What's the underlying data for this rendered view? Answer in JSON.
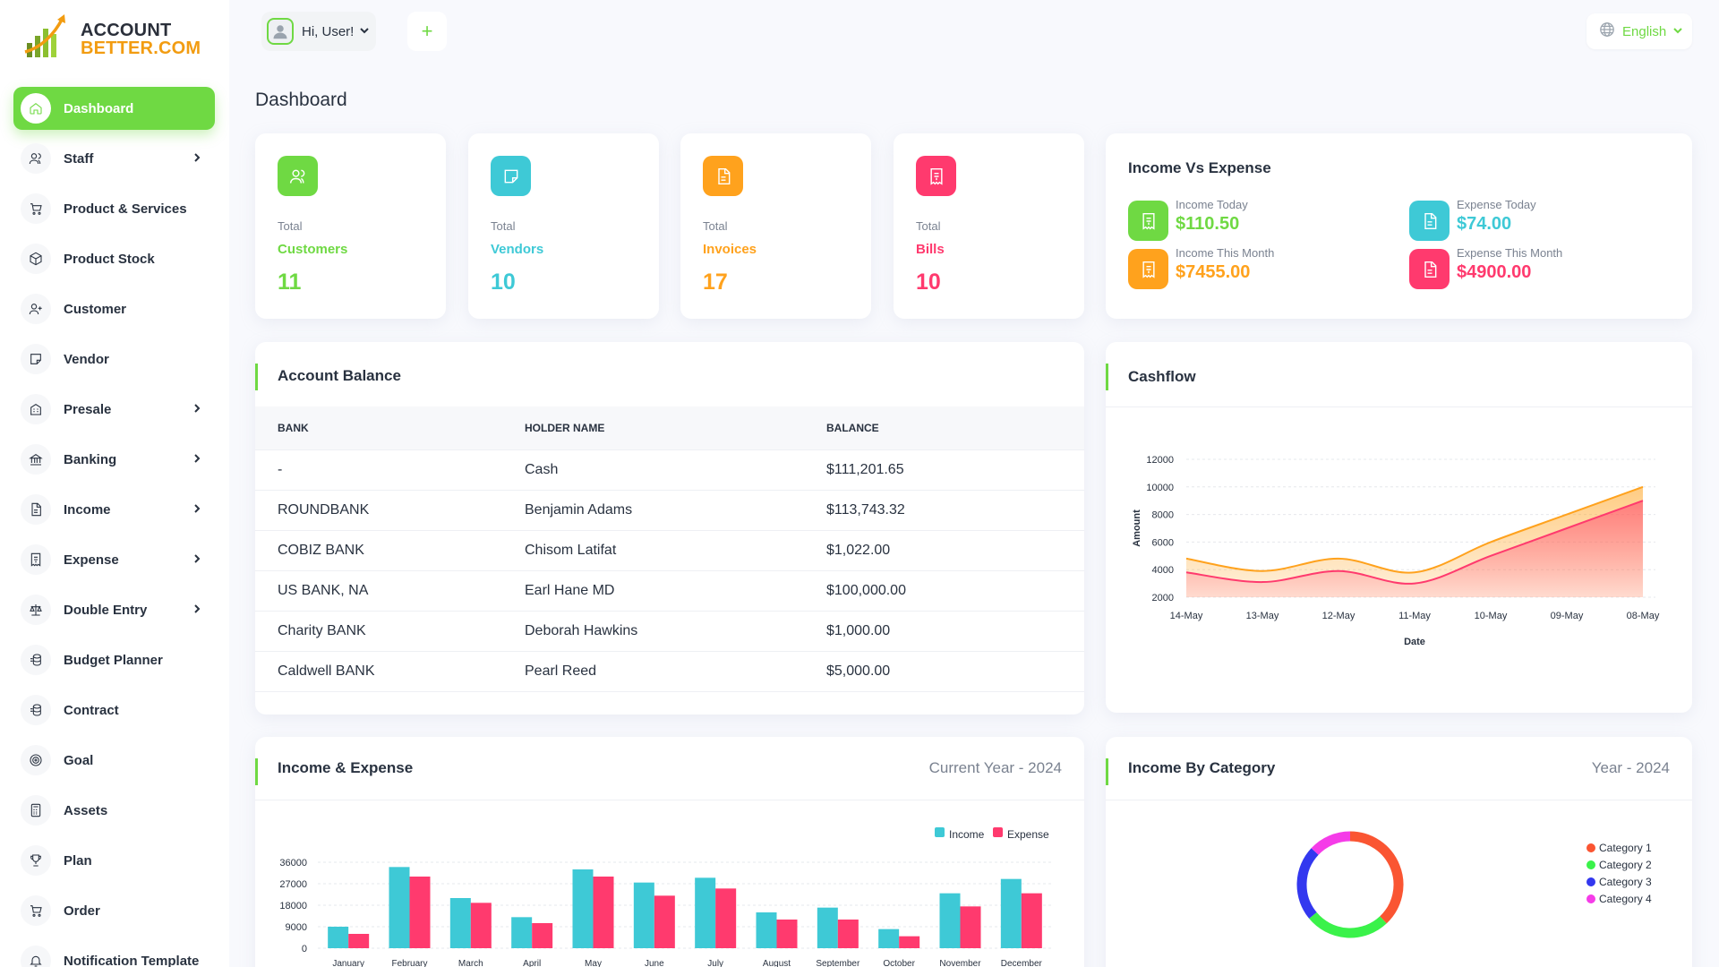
{
  "brand": {
    "line1": "ACCOUNT",
    "line2": "BETTER.COM"
  },
  "colors": {
    "accent": "#6fd943",
    "cyan": "#3ec9d6",
    "orange": "#ffa21d",
    "pink": "#ff3a6e",
    "dark": "#293240"
  },
  "sidebar": {
    "items": [
      {
        "label": "Dashboard",
        "icon": "home-icon",
        "active": true,
        "has_children": false
      },
      {
        "label": "Staff",
        "icon": "users-icon",
        "has_children": true
      },
      {
        "label": "Product & Services",
        "icon": "cart-icon",
        "has_children": false
      },
      {
        "label": "Product Stock",
        "icon": "box-icon",
        "has_children": false
      },
      {
        "label": "Customer",
        "icon": "user-plus-icon",
        "has_children": false
      },
      {
        "label": "Vendor",
        "icon": "note-icon",
        "has_children": false
      },
      {
        "label": "Presale",
        "icon": "building-icon",
        "has_children": true
      },
      {
        "label": "Banking",
        "icon": "bank-icon",
        "has_children": true
      },
      {
        "label": "Income",
        "icon": "invoice-icon",
        "has_children": true
      },
      {
        "label": "Expense",
        "icon": "receipt-icon",
        "has_children": true
      },
      {
        "label": "Double Entry",
        "icon": "scale-icon",
        "has_children": true
      },
      {
        "label": "Budget Planner",
        "icon": "coins-icon",
        "has_children": false
      },
      {
        "label": "Contract",
        "icon": "coins-icon",
        "has_children": false
      },
      {
        "label": "Goal",
        "icon": "target-icon",
        "has_children": false
      },
      {
        "label": "Assets",
        "icon": "calculator-icon",
        "has_children": false
      },
      {
        "label": "Plan",
        "icon": "trophy-icon",
        "has_children": false
      },
      {
        "label": "Order",
        "icon": "cart-icon",
        "has_children": false
      },
      {
        "label": "Notification Template",
        "icon": "bell-icon",
        "has_children": false
      }
    ]
  },
  "header": {
    "greeting": "Hi, User!",
    "add_label": "+",
    "language": "English"
  },
  "page_title": "Dashboard",
  "stats": [
    {
      "small": "Total",
      "label": "Customers",
      "value": "11",
      "color": "#6fd943",
      "icon": "users-icon"
    },
    {
      "small": "Total",
      "label": "Vendors",
      "value": "10",
      "color": "#3ec9d6",
      "icon": "note-icon"
    },
    {
      "small": "Total",
      "label": "Invoices",
      "value": "17",
      "color": "#ffa21d",
      "icon": "invoice-icon"
    },
    {
      "small": "Total",
      "label": "Bills",
      "value": "10",
      "color": "#ff3a6e",
      "icon": "receipt-icon"
    }
  ],
  "income_vs_expense": {
    "title": "Income Vs Expense",
    "items": [
      {
        "label": "Income Today",
        "value": "$110.50",
        "color": "#6fd943",
        "icon": "receipt-icon"
      },
      {
        "label": "Expense Today",
        "value": "$74.00",
        "color": "#3ec9d6",
        "icon": "invoice-icon"
      },
      {
        "label": "Income This Month",
        "value": "$7455.00",
        "color": "#ffa21d",
        "icon": "receipt-icon"
      },
      {
        "label": "Expense This Month",
        "value": "$4900.00",
        "color": "#ff3a6e",
        "icon": "invoice-icon"
      }
    ]
  },
  "account_balance": {
    "title": "Account Balance",
    "headers": [
      "BANK",
      "HOLDER NAME",
      "BALANCE"
    ],
    "rows": [
      [
        "-",
        "Cash",
        "$111,201.65"
      ],
      [
        "ROUNDBANK",
        "Benjamin Adams",
        "$113,743.32"
      ],
      [
        "COBIZ BANK",
        "Chisom Latifat",
        "$1,022.00"
      ],
      [
        "US BANK, NA",
        "Earl Hane MD",
        "$100,000.00"
      ],
      [
        "Charity BANK",
        "Deborah Hawkins",
        "$1,000.00"
      ],
      [
        "Caldwell BANK",
        "Pearl Reed",
        "$5,000.00"
      ]
    ]
  },
  "cashflow": {
    "title": "Cashflow",
    "chart_data": {
      "type": "area",
      "x": [
        "14-May",
        "13-May",
        "12-May",
        "11-May",
        "10-May",
        "09-May",
        "08-May"
      ],
      "xlabel": "Date",
      "ylabel": "Amount",
      "ylim": [
        2000,
        12000
      ],
      "yticks": [
        2000,
        4000,
        6000,
        8000,
        10000,
        12000
      ],
      "series": [
        {
          "color": "#ffa21d",
          "values": [
            4800,
            3900,
            4800,
            3800,
            6000,
            8000,
            10000
          ]
        },
        {
          "color": "#ff3a6e",
          "values": [
            3800,
            3100,
            3900,
            3000,
            5000,
            7000,
            9000
          ]
        }
      ],
      "grid": true
    }
  },
  "income_expense": {
    "title": "Income & Expense",
    "subtitle": "Current Year - 2024",
    "chart_data": {
      "type": "bar",
      "categories": [
        "January",
        "February",
        "March",
        "April",
        "May",
        "June",
        "July",
        "August",
        "September",
        "October",
        "November",
        "December"
      ],
      "ylim": [
        0,
        36000
      ],
      "yticks": [
        0,
        9000,
        18000,
        27000,
        36000
      ],
      "series": [
        {
          "name": "Income",
          "color": "#3ec9d6",
          "values": [
            9000,
            34000,
            21000,
            13000,
            33000,
            27500,
            29500,
            15000,
            17000,
            8000,
            23000,
            29000
          ]
        },
        {
          "name": "Expense",
          "color": "#ff3a6e",
          "values": [
            6000,
            30000,
            19000,
            10500,
            30000,
            22000,
            25000,
            12000,
            12000,
            5000,
            17500,
            23000
          ]
        }
      ],
      "legend": "top-right",
      "grid": true
    }
  },
  "income_by_category": {
    "title": "Income By Category",
    "subtitle": "Year - 2024",
    "chart_data": {
      "type": "pie",
      "labels": [
        "Category 1",
        "Category 2",
        "Category 3",
        "Category 4"
      ],
      "values": [
        38,
        26,
        23,
        13
      ],
      "colors": [
        "#fa5532",
        "#3af24a",
        "#3338ef",
        "#f53ce8"
      ],
      "legend": "right"
    }
  }
}
